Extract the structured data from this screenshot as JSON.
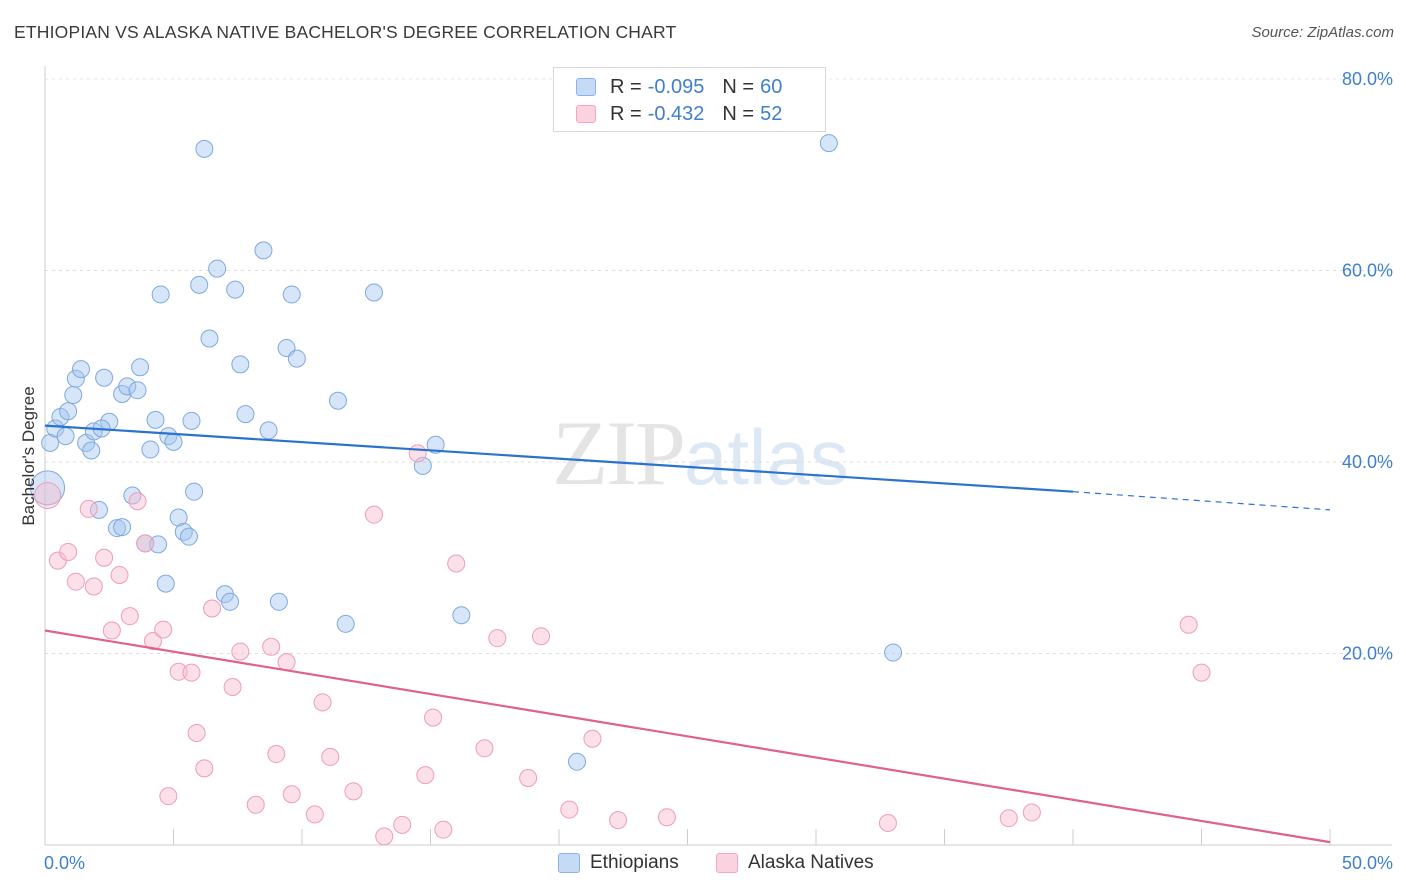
{
  "header": {
    "title": "ETHIOPIAN VS ALASKA NATIVE BACHELOR'S DEGREE CORRELATION CHART",
    "source": "Source: ZipAtlas.com"
  },
  "legend": {
    "rows": [
      {
        "r_label": "R = ",
        "r_value": "-0.095",
        "n_label": "N = ",
        "n_value": "60"
      },
      {
        "r_label": "R = ",
        "r_value": "-0.432",
        "n_label": "N = ",
        "n_value": "52"
      }
    ]
  },
  "watermark": {
    "zip": "ZIP",
    "atlas": "atlas"
  },
  "chart_data": {
    "type": "scatter",
    "title": "ETHIOPIAN VS ALASKA NATIVE BACHELOR'S DEGREE CORRELATION CHART",
    "xlabel": "",
    "ylabel": "Bachelor's Degree",
    "xlim": [
      0,
      50
    ],
    "ylim": [
      0,
      80
    ],
    "x_tick_labels": [
      "0.0%",
      "50.0%"
    ],
    "y_ticks": [
      20,
      40,
      60,
      80
    ],
    "y_tick_labels": [
      "20.0%",
      "40.0%",
      "60.0%",
      "80.0%"
    ],
    "grid": true,
    "colors": {
      "ethiopians": "#8ab4e8",
      "ethiopians_line": "#2a72d0",
      "alaska": "#f4a7bf",
      "alaska_line": "#e0608e",
      "tick": "#3f7fcf"
    },
    "series": [
      {
        "name": "Ethiopians",
        "r": -0.095,
        "n": 60,
        "trend": {
          "x0": 0,
          "y0": 43.8,
          "x1": 40,
          "y1": 36.9,
          "dash_to_x": 50,
          "dash_to_y": 35.0
        },
        "points": [
          [
            0.1,
            37.3
          ],
          [
            0.2,
            42.0
          ],
          [
            0.4,
            43.5
          ],
          [
            0.6,
            44.7
          ],
          [
            0.8,
            42.7
          ],
          [
            0.9,
            45.3
          ],
          [
            1.1,
            47.0
          ],
          [
            1.2,
            48.7
          ],
          [
            1.4,
            49.7
          ],
          [
            1.6,
            42.0
          ],
          [
            1.8,
            41.2
          ],
          [
            1.9,
            43.2
          ],
          [
            2.1,
            35.0
          ],
          [
            2.3,
            48.8
          ],
          [
            2.5,
            44.2
          ],
          [
            2.2,
            43.5
          ],
          [
            2.8,
            33.1
          ],
          [
            3.0,
            33.2
          ],
          [
            3.0,
            47.1
          ],
          [
            3.2,
            47.9
          ],
          [
            3.4,
            36.5
          ],
          [
            3.6,
            47.5
          ],
          [
            3.7,
            49.9
          ],
          [
            3.9,
            31.5
          ],
          [
            4.1,
            41.3
          ],
          [
            4.3,
            44.4
          ],
          [
            4.4,
            31.4
          ],
          [
            4.5,
            57.5
          ],
          [
            4.7,
            27.3
          ],
          [
            4.8,
            42.7
          ],
          [
            5.0,
            42.1
          ],
          [
            5.2,
            34.2
          ],
          [
            5.4,
            32.7
          ],
          [
            5.6,
            32.2
          ],
          [
            5.7,
            44.3
          ],
          [
            5.8,
            36.9
          ],
          [
            6.0,
            58.5
          ],
          [
            6.2,
            72.7
          ],
          [
            6.4,
            52.9
          ],
          [
            6.7,
            60.2
          ],
          [
            7.0,
            26.2
          ],
          [
            7.2,
            25.4
          ],
          [
            7.4,
            58.0
          ],
          [
            7.6,
            50.2
          ],
          [
            7.8,
            45.0
          ],
          [
            8.5,
            62.1
          ],
          [
            8.7,
            43.3
          ],
          [
            9.1,
            25.4
          ],
          [
            9.4,
            51.9
          ],
          [
            9.6,
            57.5
          ],
          [
            9.8,
            50.8
          ],
          [
            11.4,
            46.4
          ],
          [
            11.7,
            23.1
          ],
          [
            12.8,
            57.7
          ],
          [
            14.7,
            39.6
          ],
          [
            15.2,
            41.8
          ],
          [
            16.2,
            24.0
          ],
          [
            20.7,
            8.7
          ],
          [
            30.5,
            73.3
          ],
          [
            33.0,
            20.1
          ]
        ]
      },
      {
        "name": "Alaska Natives",
        "r": -0.432,
        "n": 52,
        "trend": {
          "x0": 0,
          "y0": 22.4,
          "x1": 50,
          "y1": 0.3
        },
        "points": [
          [
            0.1,
            36.5
          ],
          [
            0.5,
            29.7
          ],
          [
            0.9,
            30.6
          ],
          [
            1.2,
            27.5
          ],
          [
            1.9,
            27.0
          ],
          [
            1.7,
            35.1
          ],
          [
            2.3,
            30.0
          ],
          [
            2.6,
            22.4
          ],
          [
            2.9,
            28.2
          ],
          [
            3.3,
            23.9
          ],
          [
            3.6,
            35.9
          ],
          [
            3.9,
            31.5
          ],
          [
            4.2,
            21.3
          ],
          [
            4.6,
            22.5
          ],
          [
            4.8,
            5.1
          ],
          [
            5.2,
            18.1
          ],
          [
            5.7,
            18.0
          ],
          [
            5.9,
            11.7
          ],
          [
            6.2,
            8.0
          ],
          [
            6.5,
            24.7
          ],
          [
            7.3,
            16.5
          ],
          [
            7.6,
            20.2
          ],
          [
            8.2,
            4.2
          ],
          [
            8.8,
            20.7
          ],
          [
            9.0,
            9.5
          ],
          [
            9.4,
            19.1
          ],
          [
            9.6,
            5.3
          ],
          [
            10.5,
            3.2
          ],
          [
            10.8,
            14.9
          ],
          [
            11.1,
            9.2
          ],
          [
            12.0,
            5.6
          ],
          [
            12.8,
            34.5
          ],
          [
            13.2,
            0.9
          ],
          [
            13.9,
            2.1
          ],
          [
            14.5,
            40.9
          ],
          [
            14.8,
            7.3
          ],
          [
            15.1,
            13.3
          ],
          [
            15.5,
            1.6
          ],
          [
            16.0,
            29.4
          ],
          [
            17.1,
            10.1
          ],
          [
            17.6,
            21.6
          ],
          [
            18.8,
            7.0
          ],
          [
            19.3,
            21.8
          ],
          [
            20.4,
            3.7
          ],
          [
            21.3,
            11.1
          ],
          [
            22.3,
            2.6
          ],
          [
            24.2,
            2.9
          ],
          [
            32.8,
            2.3
          ],
          [
            37.5,
            2.8
          ],
          [
            38.4,
            3.4
          ],
          [
            44.5,
            23.0
          ],
          [
            45.0,
            18.0
          ]
        ]
      }
    ]
  },
  "bottom_legend": [
    {
      "label": "Ethiopians"
    },
    {
      "label": "Alaska Natives"
    }
  ]
}
